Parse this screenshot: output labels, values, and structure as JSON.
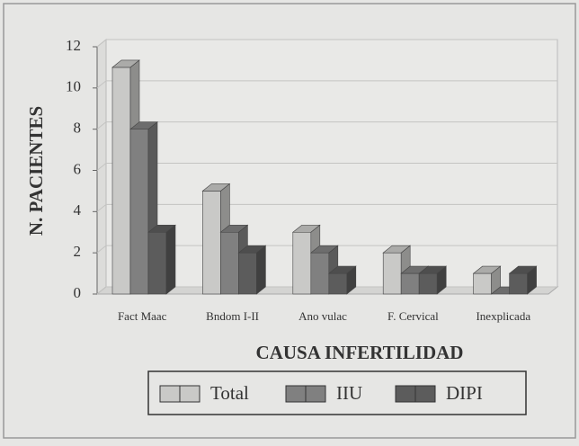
{
  "chart_data": {
    "type": "bar3d",
    "y_label": "N. PACIENTES",
    "x_label": "CAUSA INFERTILIDAD",
    "categories": [
      "Fact Maac",
      "Bndom I-II",
      "Ano vulac",
      "F. Cervical",
      "Inexplicada"
    ],
    "series": [
      {
        "name": "Total",
        "color": "#c9c9c7",
        "values": [
          11,
          5,
          3,
          2,
          1
        ]
      },
      {
        "name": "IIU",
        "color": "#808080",
        "values": [
          8,
          3,
          2,
          1,
          0
        ]
      },
      {
        "name": "DIPI",
        "color": "#5c5c5c",
        "values": [
          3,
          2,
          1,
          1,
          1
        ]
      }
    ],
    "ylim": [
      0,
      12
    ],
    "yticks": [
      0,
      2,
      4,
      6,
      8,
      10,
      12
    ],
    "grid": true
  }
}
